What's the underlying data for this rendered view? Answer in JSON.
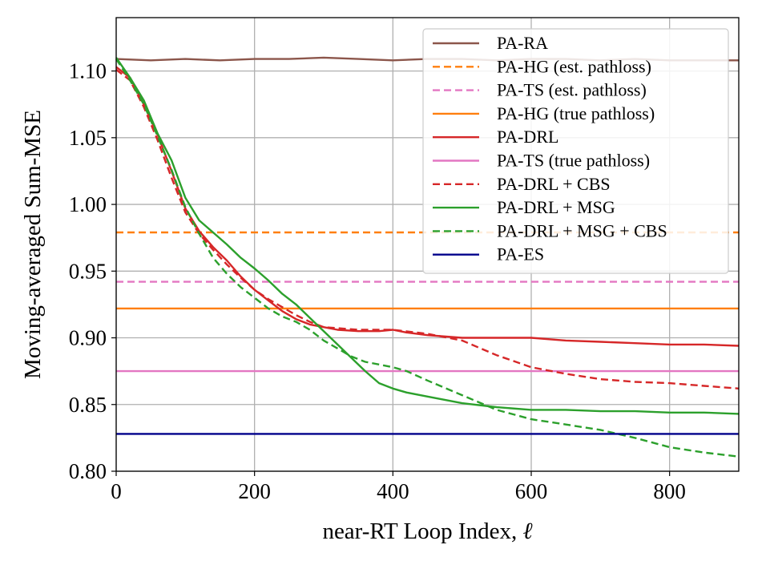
{
  "chart_data": {
    "type": "line",
    "xlabel": "near-RT Loop Index, ",
    "xlabel_symbol": "ℓ",
    "ylabel": "Moving-averaged Sum-MSE",
    "xlim": [
      0,
      900
    ],
    "ylim": [
      0.8,
      1.14
    ],
    "xticks": [
      0,
      200,
      400,
      600,
      800
    ],
    "xtick_labels": [
      "0",
      "200",
      "400",
      "600",
      "800"
    ],
    "yticks": [
      0.8,
      0.85,
      0.9,
      0.95,
      1.0,
      1.05,
      1.1
    ],
    "ytick_labels": [
      "0.80",
      "0.85",
      "0.90",
      "0.95",
      "1.00",
      "1.05",
      "1.10"
    ],
    "grid": true,
    "legend_position": "top-right",
    "series": [
      {
        "name": "PA-RA",
        "color": "#8c564b",
        "dash": "solid",
        "x": [
          0,
          50,
          100,
          150,
          200,
          250,
          300,
          350,
          400,
          450,
          500,
          550,
          600,
          650,
          700,
          750,
          800,
          850,
          900
        ],
        "y": [
          1.109,
          1.108,
          1.109,
          1.108,
          1.109,
          1.109,
          1.11,
          1.109,
          1.108,
          1.109,
          1.109,
          1.108,
          1.109,
          1.109,
          1.108,
          1.109,
          1.108,
          1.108,
          1.108
        ]
      },
      {
        "name": "PA-HG (est. pathloss)",
        "color": "#ff7f0e",
        "dash": "dashed",
        "x": [
          0,
          900
        ],
        "y": [
          0.979,
          0.979
        ]
      },
      {
        "name": "PA-TS (est. pathloss)",
        "color": "#e377c2",
        "dash": "dashed",
        "x": [
          0,
          900
        ],
        "y": [
          0.942,
          0.942
        ]
      },
      {
        "name": "PA-HG (true pathloss)",
        "color": "#ff7f0e",
        "dash": "solid",
        "x": [
          0,
          900
        ],
        "y": [
          0.922,
          0.922
        ]
      },
      {
        "name": "PA-DRL",
        "color": "#d62728",
        "dash": "solid",
        "x": [
          0,
          20,
          40,
          60,
          80,
          100,
          120,
          140,
          160,
          180,
          200,
          220,
          240,
          260,
          280,
          300,
          320,
          350,
          380,
          400,
          420,
          450,
          500,
          550,
          600,
          650,
          700,
          750,
          800,
          850,
          900
        ],
        "y": [
          1.103,
          1.095,
          1.075,
          1.052,
          1.025,
          0.997,
          0.98,
          0.968,
          0.958,
          0.946,
          0.936,
          0.928,
          0.92,
          0.914,
          0.91,
          0.908,
          0.906,
          0.905,
          0.905,
          0.906,
          0.904,
          0.902,
          0.9,
          0.9,
          0.9,
          0.898,
          0.897,
          0.896,
          0.895,
          0.895,
          0.894
        ]
      },
      {
        "name": "PA-TS (true pathloss)",
        "color": "#e377c2",
        "dash": "solid",
        "x": [
          0,
          900
        ],
        "y": [
          0.875,
          0.875
        ]
      },
      {
        "name": "PA-DRL + CBS",
        "color": "#d62728",
        "dash": "dashed",
        "x": [
          0,
          20,
          40,
          60,
          80,
          100,
          120,
          140,
          160,
          180,
          200,
          220,
          240,
          260,
          280,
          300,
          350,
          400,
          450,
          500,
          550,
          600,
          650,
          700,
          750,
          800,
          850,
          900
        ],
        "y": [
          1.101,
          1.093,
          1.073,
          1.048,
          1.02,
          0.994,
          0.978,
          0.966,
          0.955,
          0.945,
          0.936,
          0.929,
          0.923,
          0.917,
          0.912,
          0.908,
          0.906,
          0.906,
          0.903,
          0.898,
          0.887,
          0.878,
          0.873,
          0.869,
          0.867,
          0.866,
          0.864,
          0.862
        ]
      },
      {
        "name": "PA-DRL + MSG",
        "color": "#2ca02c",
        "dash": "solid",
        "x": [
          0,
          20,
          40,
          60,
          80,
          100,
          120,
          140,
          160,
          180,
          200,
          220,
          240,
          260,
          280,
          300,
          320,
          340,
          360,
          380,
          400,
          420,
          450,
          500,
          550,
          600,
          650,
          700,
          750,
          800,
          850,
          900
        ],
        "y": [
          1.11,
          1.095,
          1.078,
          1.053,
          1.033,
          1.005,
          0.988,
          0.979,
          0.97,
          0.96,
          0.952,
          0.943,
          0.933,
          0.925,
          0.915,
          0.905,
          0.895,
          0.885,
          0.875,
          0.866,
          0.862,
          0.859,
          0.856,
          0.851,
          0.848,
          0.846,
          0.846,
          0.845,
          0.845,
          0.844,
          0.844,
          0.843
        ]
      },
      {
        "name": "PA-DRL + MSG + CBS",
        "color": "#2ca02c",
        "dash": "dashed",
        "x": [
          0,
          20,
          40,
          60,
          80,
          100,
          120,
          140,
          160,
          180,
          200,
          220,
          240,
          260,
          280,
          300,
          320,
          340,
          360,
          380,
          400,
          420,
          450,
          500,
          550,
          600,
          650,
          700,
          750,
          800,
          850,
          900
        ],
        "y": [
          1.109,
          1.093,
          1.075,
          1.051,
          1.026,
          0.998,
          0.978,
          0.96,
          0.948,
          0.938,
          0.93,
          0.922,
          0.916,
          0.912,
          0.906,
          0.898,
          0.892,
          0.886,
          0.882,
          0.88,
          0.878,
          0.875,
          0.868,
          0.857,
          0.846,
          0.839,
          0.835,
          0.831,
          0.825,
          0.818,
          0.814,
          0.811
        ]
      },
      {
        "name": "PA-ES",
        "color": "#00008b",
        "dash": "solid",
        "x": [
          0,
          900
        ],
        "y": [
          0.828,
          0.828
        ]
      }
    ]
  }
}
